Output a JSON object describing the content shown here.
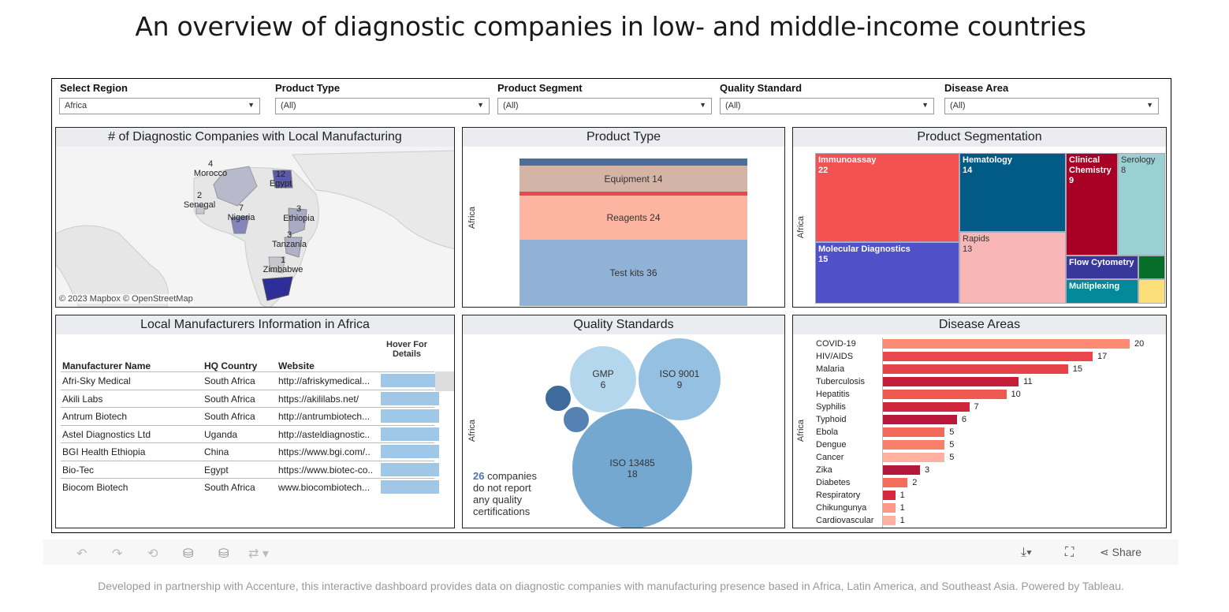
{
  "title": "An overview of diagnostic companies in low- and middle-income countries",
  "filters": [
    {
      "label": "Select Region",
      "value": "Africa"
    },
    {
      "label": "Product Type",
      "value": "(All)"
    },
    {
      "label": "Product Segment",
      "value": "(All)"
    },
    {
      "label": "Quality Standard",
      "value": "(All)"
    },
    {
      "label": "Disease Area",
      "value": "(All)"
    }
  ],
  "map": {
    "title": "# of Diagnostic Companies with Local Manufacturing",
    "attribution": "© 2023 Mapbox  © OpenStreetMap",
    "countries": [
      {
        "name": "Morocco",
        "count": "4"
      },
      {
        "name": "Egypt",
        "count": "12"
      },
      {
        "name": "Senegal",
        "count": "2"
      },
      {
        "name": "Nigeria",
        "count": "7"
      },
      {
        "name": "Ethiopia",
        "count": "3"
      },
      {
        "name": "Tanzania",
        "count": "3"
      },
      {
        "name": "Zimbabwe",
        "count": "1"
      }
    ]
  },
  "table": {
    "title": "Local Manufacturers Information in Africa",
    "headers": [
      "Manufacturer Name",
      "HQ Country",
      "Website",
      "Hover For Details"
    ],
    "rows": [
      [
        "Afri-Sky Medical",
        "South Africa",
        "http://afriskymedical..."
      ],
      [
        "Akili Labs",
        "South Africa",
        "https://akililabs.net/"
      ],
      [
        "Antrum Biotech",
        "South Africa",
        "http://antrumbiotech..."
      ],
      [
        "Astel Diagnostics Ltd",
        "Uganda",
        "http://asteldiagnostic.."
      ],
      [
        "BGI Health Ethiopia",
        "China",
        "https://www.bgi.com/.."
      ],
      [
        "Bio-Tec",
        "Egypt",
        "https://www.biotec-co.."
      ],
      [
        "Biocom Biotech",
        "South Africa",
        "www.biocombiotech..."
      ]
    ]
  },
  "quality": {
    "title": "Quality Standards",
    "count": "26",
    "note": [
      "companies",
      "do not report",
      "any quality",
      "certifications"
    ]
  },
  "chart_data": [
    {
      "type": "bar",
      "title": "Product Type",
      "stacked": true,
      "ylabel": "Africa",
      "segments": [
        {
          "label": "",
          "value": 4,
          "color": "#4a6f9b"
        },
        {
          "label": "Equipment",
          "value": 14,
          "color": "#d4b4a6"
        },
        {
          "label": "",
          "value": 2,
          "color": "#e8474e"
        },
        {
          "label": "Reagents",
          "value": 24,
          "color": "#fdb4a0"
        },
        {
          "label": "Test kits",
          "value": 36,
          "color": "#91b2d7"
        }
      ]
    },
    {
      "type": "treemap",
      "title": "Product Segmentation",
      "ylabel": "Africa",
      "items": [
        {
          "label": "Immunoassay",
          "value": 22,
          "color": "#f45152"
        },
        {
          "label": "Molecular Diagnostics",
          "value": 15,
          "color": "#5051c9"
        },
        {
          "label": "Hematology",
          "value": 14,
          "color": "#025b86"
        },
        {
          "label": "Rapids",
          "value": 13,
          "color": "#f9b6b7"
        },
        {
          "label": "Clinical Chemistry",
          "value": 9,
          "color": "#a80025"
        },
        {
          "label": "Serology",
          "value": 8,
          "color": "#9bd0d3"
        },
        {
          "label": "Flow Cytometry",
          "value": null,
          "color": "#38389a"
        },
        {
          "label": "",
          "value": null,
          "color": "#076e29"
        },
        {
          "label": "Multiplexing",
          "value": null,
          "color": "#02899a"
        },
        {
          "label": "",
          "value": null,
          "color": "#fddf7a"
        }
      ]
    },
    {
      "type": "scatter",
      "subtype": "bubble",
      "title": "Quality Standards",
      "ylabel": "Africa",
      "items": [
        {
          "label": "GMP",
          "value": 6,
          "color": "#b4d7ee"
        },
        {
          "label": "ISO 9001",
          "value": 9,
          "color": "#94c1e1"
        },
        {
          "label": "ISO 13485",
          "value": 18,
          "color": "#74a8d0"
        },
        {
          "label": "",
          "value": 1,
          "color": "#3f6a9c"
        },
        {
          "label": "",
          "value": 1,
          "color": "#5582b3"
        }
      ]
    },
    {
      "type": "bar",
      "orientation": "horizontal",
      "title": "Disease Areas",
      "ylabel": "Africa",
      "categories": [
        "COVID-19",
        "HIV/AIDS",
        "Malaria",
        "Tuberculosis",
        "Hepatitis",
        "Syphilis",
        "Typhoid",
        "Ebola",
        "Dengue",
        "Cancer",
        "Zika",
        "Diabetes",
        "Respiratory",
        "Chikungunya",
        "Cardiovascular"
      ],
      "values": [
        20,
        17,
        15,
        11,
        10,
        7,
        6,
        5,
        5,
        5,
        3,
        2,
        1,
        1,
        1
      ],
      "colors": [
        "#fd8a72",
        "#e9474d",
        "#e4434a",
        "#c51e3a",
        "#f0594f",
        "#cf263e",
        "#b9163b",
        "#f36856",
        "#f7806b",
        "#feb1a0",
        "#b3173b",
        "#f46d5b",
        "#d7273f",
        "#fb9887",
        "#feb1a0"
      ]
    }
  ],
  "toolbar": {
    "share": "Share"
  },
  "footer": "Developed in partnership with Accenture, this interactive dashboard provides data on diagnostic companies with manufacturing presence based in Africa, Latin America, and Southeast Asia. Powered by Tableau."
}
